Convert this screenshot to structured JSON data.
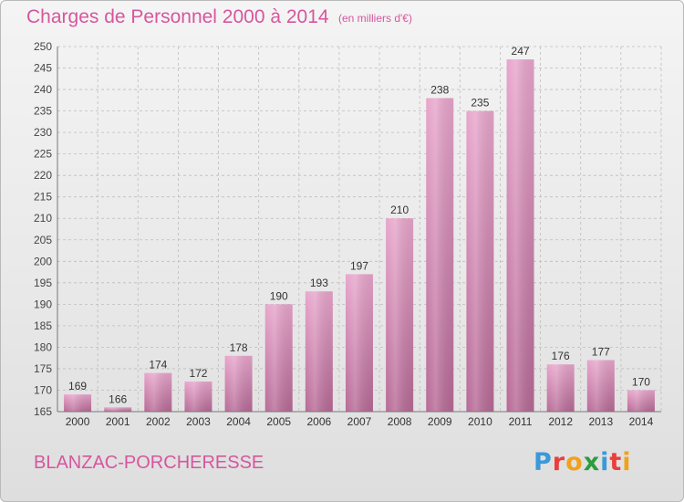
{
  "header": {
    "title": "Charges de Personnel 2000 à 2014",
    "unit": "(en milliers d'€)"
  },
  "footer": {
    "commune": "BLANZAC-PORCHERESSE",
    "logo_letters": [
      {
        "char": "P",
        "color": "#3a9ad9"
      },
      {
        "char": "r",
        "color": "#e8403c"
      },
      {
        "char": "o",
        "color": "#f0a21c"
      },
      {
        "char": "x",
        "color": "#2f9c3e"
      },
      {
        "char": "i",
        "color": "#3a9ad9"
      },
      {
        "char": "t",
        "color": "#e8403c"
      },
      {
        "char": "i",
        "color": "#f0a21c"
      }
    ]
  },
  "colors": {
    "accent": "#d6569e",
    "bar_top": "#e8a6cc",
    "bar_bottom": "#b76a96",
    "grid": "#bdbdbd"
  },
  "chart_data": {
    "type": "bar",
    "title": "Charges de Personnel 2000 à 2014",
    "subtitle": "(en milliers d'€)",
    "categories": [
      "2000",
      "2001",
      "2002",
      "2003",
      "2004",
      "2005",
      "2006",
      "2007",
      "2008",
      "2009",
      "2010",
      "2011",
      "2012",
      "2013",
      "2014"
    ],
    "values": [
      169,
      166,
      174,
      172,
      178,
      190,
      193,
      197,
      210,
      238,
      235,
      247,
      176,
      177,
      170
    ],
    "ylim": [
      165,
      250
    ],
    "yticks": [
      165,
      170,
      175,
      180,
      185,
      190,
      195,
      200,
      205,
      210,
      215,
      220,
      225,
      230,
      235,
      240,
      245,
      250
    ],
    "grid": true,
    "xlabel": "",
    "ylabel": ""
  }
}
